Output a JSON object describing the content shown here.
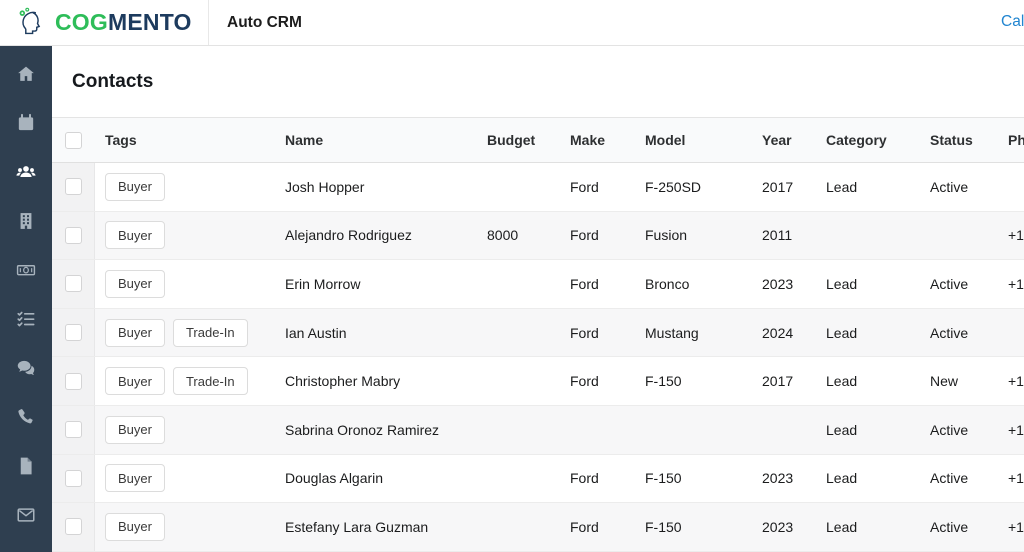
{
  "topbar": {
    "brand_primary": "COG",
    "brand_secondary": "MENTO",
    "app_title": "Auto CRM",
    "calendar_link": "Calendar"
  },
  "sidebar": {
    "active_index": 2,
    "items": [
      {
        "icon": "home-icon"
      },
      {
        "icon": "calendar-icon"
      },
      {
        "icon": "contacts-icon"
      },
      {
        "icon": "companies-icon"
      },
      {
        "icon": "deals-icon"
      },
      {
        "icon": "tasks-icon"
      },
      {
        "icon": "chat-icon"
      },
      {
        "icon": "calls-icon"
      },
      {
        "icon": "documents-icon"
      },
      {
        "icon": "email-icon"
      }
    ]
  },
  "page": {
    "title": "Contacts"
  },
  "table": {
    "columns": [
      "Tags",
      "Name",
      "Budget",
      "Make",
      "Model",
      "Year",
      "Category",
      "Status",
      "Phone"
    ],
    "rows": [
      {
        "tags": [
          "Buyer"
        ],
        "name": "Josh Hopper",
        "budget": "",
        "make": "Ford",
        "model": "F-250SD",
        "year": "2017",
        "category": "Lead",
        "status": "Active",
        "phone": ""
      },
      {
        "tags": [
          "Buyer"
        ],
        "name": "Alejandro Rodriguez",
        "budget": "8000",
        "make": "Ford",
        "model": "Fusion",
        "year": "2011",
        "category": "",
        "status": "",
        "phone": "+1"
      },
      {
        "tags": [
          "Buyer"
        ],
        "name": "Erin Morrow",
        "budget": "",
        "make": "Ford",
        "model": "Bronco",
        "year": "2023",
        "category": "Lead",
        "status": "Active",
        "phone": "+1"
      },
      {
        "tags": [
          "Buyer",
          "Trade-In"
        ],
        "name": "Ian Austin",
        "budget": "",
        "make": "Ford",
        "model": "Mustang",
        "year": "2024",
        "category": "Lead",
        "status": "Active",
        "phone": ""
      },
      {
        "tags": [
          "Buyer",
          "Trade-In"
        ],
        "name": "Christopher Mabry",
        "budget": "",
        "make": "Ford",
        "model": "F-150",
        "year": "2017",
        "category": "Lead",
        "status": "New",
        "phone": "+1"
      },
      {
        "tags": [
          "Buyer"
        ],
        "name": "Sabrina Oronoz Ramirez",
        "budget": "",
        "make": "",
        "model": "",
        "year": "",
        "category": "Lead",
        "status": "Active",
        "phone": "+1"
      },
      {
        "tags": [
          "Buyer"
        ],
        "name": "Douglas Algarin",
        "budget": "",
        "make": "Ford",
        "model": "F-150",
        "year": "2023",
        "category": "Lead",
        "status": "Active",
        "phone": "+1"
      },
      {
        "tags": [
          "Buyer"
        ],
        "name": "Estefany Lara Guzman",
        "budget": "",
        "make": "Ford",
        "model": "F-150",
        "year": "2023",
        "category": "Lead",
        "status": "Active",
        "phone": "+1"
      }
    ]
  },
  "colors": {
    "brand_green": "#2ebd59",
    "brand_navy": "#1d3b5e",
    "sidebar_bg": "#2f3f50",
    "link_blue": "#2185d0"
  }
}
